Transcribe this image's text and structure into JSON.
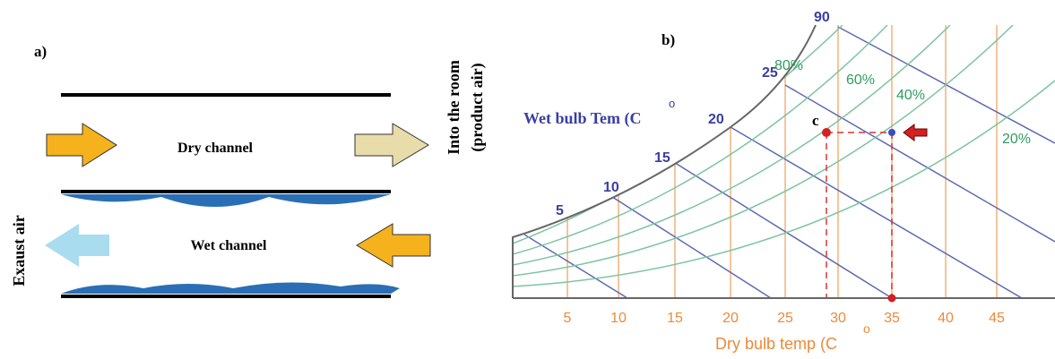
{
  "panel_a": {
    "label": "a)",
    "dry_channel": "Dry channel",
    "wet_channel": "Wet channel",
    "outlet": [
      "Into the room",
      "(product air)"
    ],
    "exhaust": "Exaust air"
  },
  "panel_b": {
    "label": "b)",
    "wet_bulb_title": "Wet bulb Tem (C",
    "wet_bulb_unit": "o",
    "x_title": "Dry bulb temp (C",
    "x_unit": "o",
    "point_label": "c",
    "wet_bulb_ticks": [
      "5",
      "10",
      "15",
      "20",
      "25",
      "90"
    ],
    "rh_labels": [
      "80%",
      "60%",
      "40%",
      "20%"
    ],
    "x_ticks": [
      "5",
      "10",
      "15",
      "20",
      "25",
      "30",
      "35",
      "40",
      "45"
    ]
  }
}
